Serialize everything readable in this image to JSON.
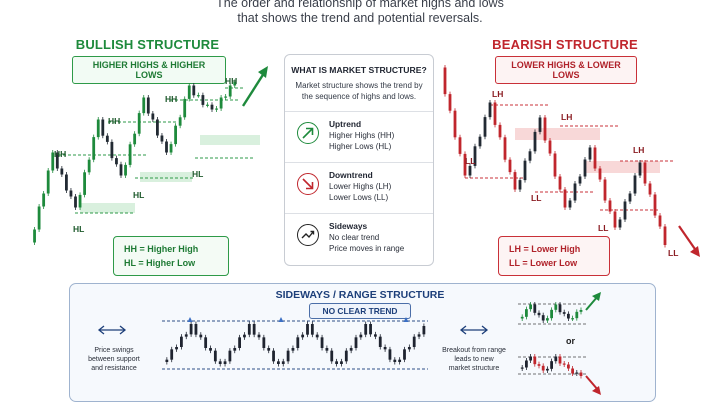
{
  "subtitle": {
    "line1": "The order and relationship of market highs and lows",
    "line2": "that shows the trend and potential reversals."
  },
  "bullish": {
    "title": "BULLISH STRUCTURE",
    "pill": "HIGHER HIGHS & HIGHER LOWS",
    "labels": {
      "hh": "HH",
      "hl": "HL"
    },
    "legend": [
      "HH = Higher High",
      "HL = Higher Low"
    ],
    "color": "#1e8a3c"
  },
  "bearish": {
    "title": "BEARISH STRUCTURE",
    "pill": "LOWER HIGHS & LOWER LOWS",
    "labels": {
      "lh": "LH",
      "ll": "LL"
    },
    "legend": [
      "LH = Lower High",
      "LL = Lower Low"
    ],
    "color": "#c0262d"
  },
  "card": {
    "title": "WHAT IS MARKET STRUCTURE?",
    "description": "Market structure shows the trend by the sequence of highs and lows.",
    "rows": [
      {
        "heading": "Uptrend",
        "lines": [
          "Higher Highs (HH)",
          "Higher Lows (HL)"
        ],
        "icon": "arrow-up-right-icon"
      },
      {
        "heading": "Downtrend",
        "lines": [
          "Lower Highs (LH)",
          "Lower Lows (LL)"
        ],
        "icon": "arrow-down-right-icon"
      },
      {
        "heading": "Sideways",
        "lines": [
          "No clear trend",
          "Price moves in range"
        ],
        "icon": "sideways-arrow-icon"
      }
    ]
  },
  "range": {
    "title": "SIDEWAYS / RANGE STRUCTURE",
    "pill": "NO CLEAR TREND",
    "left_note": [
      "Price swings",
      "between support",
      "and resistance"
    ],
    "right_note": [
      "Breakout from range",
      "leads to new",
      "market structure"
    ],
    "or_label": "or",
    "accent": "#1d3f7a"
  }
}
